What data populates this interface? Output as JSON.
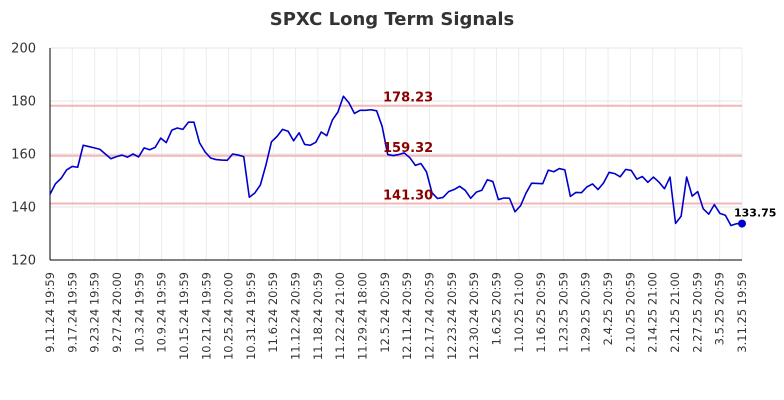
{
  "chart_data": {
    "type": "line",
    "title": "SPXC Long Term Signals",
    "xlabel": "",
    "ylabel": "",
    "ylim": [
      120,
      200
    ],
    "y_ticks": [
      120,
      140,
      160,
      180,
      200
    ],
    "x_tick_labels": [
      "9.11.24 19:59",
      "9.17.24 19:59",
      "9.23.24 19:59",
      "9.27.24 20:00",
      "10.3.24 19:59",
      "10.9.24 19:59",
      "10.15.24 19:59",
      "10.21.24 19:59",
      "10.25.24 20:00",
      "10.31.24 19:59",
      "11.6.24 20:59",
      "11.12.24 20:59",
      "11.18.24 20:59",
      "11.22.24 21:00",
      "11.29.24 18:00",
      "12.5.24 20:59",
      "12.11.24 20:59",
      "12.17.24 20:59",
      "12.23.24 20:59",
      "12.30.24 20:59",
      "1.6.25 20:59",
      "1.10.25 21:00",
      "1.16.25 20:59",
      "1.23.25 20:59",
      "1.29.25 20:59",
      "2.4.25 20:59",
      "2.10.25 20:59",
      "2.14.25 21:00",
      "2.21.25 21:00",
      "2.27.25 20:59",
      "3.5.25 20:59",
      "3.11.25 19:59"
    ],
    "grid": true,
    "line_color": "#0000cc",
    "level_color": "#f4b6b6",
    "level_label_color": "#8b0000",
    "levels": [
      {
        "value": 178.23,
        "label": "178.23"
      },
      {
        "value": 159.32,
        "label": "159.32"
      },
      {
        "value": 141.3,
        "label": "141.30"
      }
    ],
    "last_value_label": "133.75",
    "series": [
      {
        "values": [
          144.8,
          148.8,
          150.8,
          154.0,
          155.3,
          155.0,
          163.3,
          162.8,
          162.3,
          161.8,
          160.0,
          158.2,
          159.0,
          159.6,
          158.8,
          160.0,
          158.9,
          162.3,
          161.6,
          162.5,
          166.0,
          164.3,
          169.0,
          169.8,
          169.3,
          172.0,
          172.0,
          164.3,
          160.8,
          158.5,
          157.9,
          157.7,
          157.6,
          160.0,
          159.6,
          159.0,
          143.7,
          145.3,
          148.3,
          155.8,
          164.6,
          166.6,
          169.3,
          168.6,
          165.0,
          168.0,
          163.6,
          163.3,
          164.4,
          168.3,
          166.9,
          172.8,
          175.8,
          181.8,
          179.3,
          175.3,
          176.5,
          176.5,
          176.7,
          176.3,
          170.4,
          159.8,
          159.4,
          159.8,
          160.4,
          158.6,
          155.7,
          156.4,
          153.3,
          145.4,
          143.2,
          143.6,
          145.8,
          146.6,
          147.8,
          146.3,
          143.3,
          145.6,
          146.3,
          150.3,
          149.6,
          142.8,
          143.4,
          143.3,
          138.2,
          140.5,
          145.3,
          149.0,
          148.9,
          148.8,
          153.9,
          153.3,
          154.5,
          154.0,
          144.0,
          145.5,
          145.4,
          147.6,
          148.7,
          146.6,
          149.1,
          153.1,
          152.6,
          151.4,
          154.2,
          153.8,
          150.5,
          151.5,
          149.3,
          151.3,
          149.4,
          146.9,
          151.3,
          133.8,
          136.5,
          151.3,
          144.1,
          145.8,
          139.3,
          137.3,
          140.9,
          137.6,
          136.9,
          133.0,
          133.7,
          133.75
        ]
      }
    ]
  }
}
